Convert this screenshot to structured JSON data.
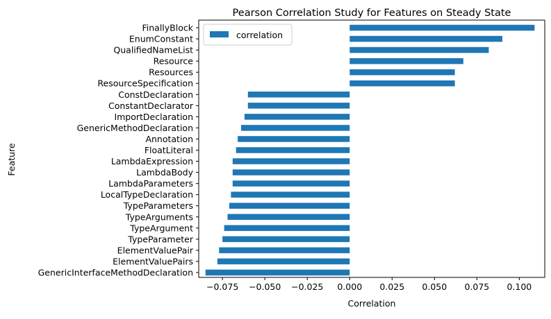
{
  "chart_data": {
    "type": "bar",
    "orientation": "horizontal",
    "title": "Pearson Correlation Study for Features on Steady State",
    "xlabel": "Correlation",
    "ylabel": "Feature",
    "xlim": [
      -0.089,
      0.115
    ],
    "xticks": [
      -0.075,
      -0.05,
      -0.025,
      0.0,
      0.025,
      0.05,
      0.075,
      0.1
    ],
    "xtick_labels": [
      "−0.075",
      "−0.050",
      "−0.025",
      "0.000",
      "0.025",
      "0.050",
      "0.075",
      "0.100"
    ],
    "grid": false,
    "legend_position": "top-left",
    "bar_color": "#1f77b4",
    "categories": [
      "FinallyBlock",
      "EnumConstant",
      "QualifiedNameList",
      "Resource",
      "Resources",
      "ResourceSpecification",
      "ConstDeclaration",
      "ConstantDeclarator",
      "ImportDeclaration",
      "GenericMethodDeclaration",
      "Annotation",
      "FloatLiteral",
      "LambdaExpression",
      "LambdaBody",
      "LambdaParameters",
      "LocalTypeDeclaration",
      "TypeParameters",
      "TypeArguments",
      "TypeArgument",
      "TypeParameter",
      "ElementValuePair",
      "ElementValuePairs",
      "GenericInterfaceMethodDeclaration"
    ],
    "series": [
      {
        "name": "correlation",
        "values": [
          0.109,
          0.09,
          0.082,
          0.067,
          0.062,
          0.062,
          -0.06,
          -0.06,
          -0.062,
          -0.064,
          -0.066,
          -0.067,
          -0.069,
          -0.069,
          -0.069,
          -0.07,
          -0.071,
          -0.072,
          -0.074,
          -0.075,
          -0.077,
          -0.078,
          -0.085
        ]
      }
    ]
  }
}
